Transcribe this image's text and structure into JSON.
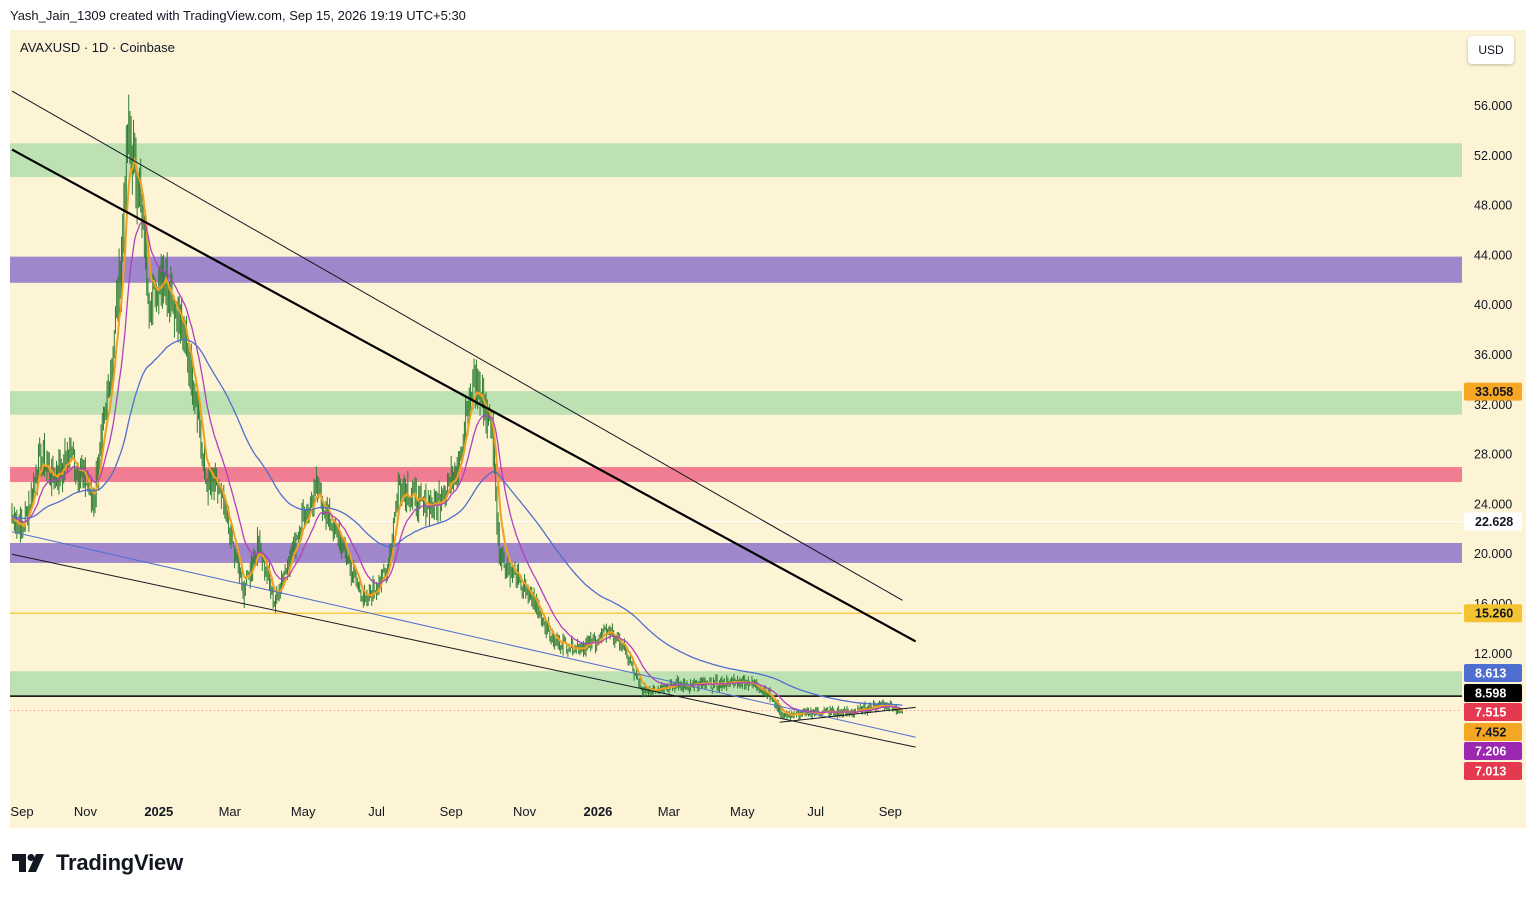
{
  "header": {
    "attribution": "Yash_Jain_1309 created with TradingView.com, Sep 15, 2026 19:19 UTC+5:30"
  },
  "chart": {
    "symbol_line": "AVAXUSD · 1D · Coinbase",
    "currency": "USD"
  },
  "footer": {
    "brand": "TradingView"
  },
  "colors": {
    "background": "#fdf3d5",
    "zone_green": "#b9dfb0",
    "zone_purple": "#9b80c9",
    "zone_pink": "#f0768f",
    "candle": "#2e7d32",
    "ema_fast": "#f0a020",
    "ema_mid": "#b040c0",
    "ema_slow": "#4f6fd0",
    "support_line": "#f4c430"
  },
  "chart_data": {
    "type": "candlestick",
    "symbol": "AVAXUSD",
    "interval": "1D",
    "exchange": "Coinbase",
    "x_axis": {
      "ticks": [
        {
          "label": "Sep",
          "date": "2024-09-01",
          "bold": false
        },
        {
          "label": "Nov",
          "date": "2024-11-01",
          "bold": false
        },
        {
          "label": "2025",
          "date": "2025-01-01",
          "bold": true
        },
        {
          "label": "Mar",
          "date": "2025-03-01",
          "bold": false
        },
        {
          "label": "May",
          "date": "2025-05-01",
          "bold": false
        },
        {
          "label": "Jul",
          "date": "2025-07-01",
          "bold": false
        },
        {
          "label": "Sep",
          "date": "2025-09-01",
          "bold": false
        },
        {
          "label": "Nov",
          "date": "2025-11-01",
          "bold": false
        },
        {
          "label": "2026",
          "date": "2026-01-01",
          "bold": true
        },
        {
          "label": "Mar",
          "date": "2026-03-01",
          "bold": false
        },
        {
          "label": "May",
          "date": "2026-05-01",
          "bold": false
        },
        {
          "label": "Jul",
          "date": "2026-07-01",
          "bold": false
        },
        {
          "label": "Sep",
          "date": "2026-09-01",
          "bold": false
        }
      ]
    },
    "y_axis": {
      "ticks": [
        {
          "label": "56.000",
          "value": 56
        },
        {
          "label": "52.000",
          "value": 52
        },
        {
          "label": "48.000",
          "value": 48
        },
        {
          "label": "44.000",
          "value": 44
        },
        {
          "label": "40.000",
          "value": 40
        },
        {
          "label": "36.000",
          "value": 36
        },
        {
          "label": "32.000",
          "value": 32
        },
        {
          "label": "28.000",
          "value": 28
        },
        {
          "label": "24.000",
          "value": 24
        },
        {
          "label": "20.000",
          "value": 20
        },
        {
          "label": "16.000",
          "value": 16
        },
        {
          "label": "12.000",
          "value": 12
        }
      ]
    },
    "price_labels": [
      {
        "label": "33.058",
        "value": 33.058,
        "bg": "#f5a623",
        "color": "#131722"
      },
      {
        "label": "22.628",
        "value": 22.628,
        "bg": "#ffffff",
        "color": "#131722"
      },
      {
        "label": "15.260",
        "value": 15.26,
        "bg": "#f4c430",
        "color": "#131722"
      },
      {
        "label": "8.613",
        "value": 8.613,
        "bg": "#4f6fd0",
        "color": "#ffffff"
      },
      {
        "label": "8.598",
        "value": 8.598,
        "bg": "#000000",
        "color": "#ffffff"
      },
      {
        "label": "7.515",
        "value": 7.515,
        "bg": "#e53950",
        "color": "#ffffff"
      },
      {
        "label": "7.452",
        "value": 7.452,
        "bg": "#f5a623",
        "color": "#131722"
      },
      {
        "label": "7.206",
        "value": 7.206,
        "bg": "#9c27b0",
        "color": "#ffffff"
      },
      {
        "label": "7.013",
        "value": 7.013,
        "bg": "#e53950",
        "color": "#ffffff"
      }
    ],
    "zones": [
      {
        "low": 50.3,
        "high": 53.0,
        "color": "#b9dfb0"
      },
      {
        "low": 41.8,
        "high": 43.9,
        "color": "#9b80c9"
      },
      {
        "low": 31.2,
        "high": 33.1,
        "color": "#b9dfb0"
      },
      {
        "low": 25.8,
        "high": 27.0,
        "color": "#f0768f"
      },
      {
        "low": 19.3,
        "high": 20.9,
        "color": "#9b80c9"
      },
      {
        "low": 8.6,
        "high": 10.6,
        "color": "#b9dfb0"
      }
    ],
    "horizontal_lines": [
      {
        "value": 15.26,
        "color": "#f4c430",
        "width": 1.2
      },
      {
        "value": 22.628,
        "color": "#ffffff",
        "width": 1.2
      },
      {
        "value": 8.598,
        "color": "#000000",
        "width": 1.5
      }
    ],
    "trendlines": [
      {
        "from": [
          "2024-09-01",
          57.2
        ],
        "to": [
          "2026-09-11",
          16.3
        ],
        "color": "#131722",
        "width": 1
      },
      {
        "from": [
          "2024-09-01",
          52.5
        ],
        "to": [
          "2026-09-22",
          13.0
        ],
        "color": "#000000",
        "width": 2.2
      },
      {
        "from": [
          "2024-09-01",
          20.0
        ],
        "to": [
          "2026-09-22",
          4.5
        ],
        "color": "#131722",
        "width": 1
      },
      {
        "from": [
          "2024-09-01",
          21.8
        ],
        "to": [
          "2026-09-22",
          5.3
        ],
        "color": "#4f6fd0",
        "width": 1
      },
      {
        "from": [
          "2026-06-01",
          6.5
        ],
        "to": [
          "2026-09-22",
          7.7
        ],
        "color": "#131722",
        "width": 1
      }
    ],
    "price_path": [
      {
        "date": "2024-09-01",
        "close": 23.0
      },
      {
        "date": "2024-09-10",
        "close": 22.0
      },
      {
        "date": "2024-09-25",
        "close": 28.0
      },
      {
        "date": "2024-10-05",
        "close": 26.0
      },
      {
        "date": "2024-10-20",
        "close": 28.0
      },
      {
        "date": "2024-11-01",
        "close": 26.0
      },
      {
        "date": "2024-11-07",
        "close": 24.0
      },
      {
        "date": "2024-11-20",
        "close": 33.0
      },
      {
        "date": "2024-12-01",
        "close": 44.0
      },
      {
        "date": "2024-12-06",
        "close": 54.0
      },
      {
        "date": "2024-12-15",
        "close": 50.0
      },
      {
        "date": "2024-12-25",
        "close": 40.0
      },
      {
        "date": "2025-01-05",
        "close": 43.0
      },
      {
        "date": "2025-01-18",
        "close": 39.0
      },
      {
        "date": "2025-02-01",
        "close": 33.0
      },
      {
        "date": "2025-02-08",
        "close": 26.0
      },
      {
        "date": "2025-02-20",
        "close": 25.0
      },
      {
        "date": "2025-03-05",
        "close": 20.0
      },
      {
        "date": "2025-03-12",
        "close": 17.0
      },
      {
        "date": "2025-03-25",
        "close": 21.0
      },
      {
        "date": "2025-04-07",
        "close": 16.0
      },
      {
        "date": "2025-04-20",
        "close": 20.0
      },
      {
        "date": "2025-05-01",
        "close": 23.0
      },
      {
        "date": "2025-05-12",
        "close": 25.0
      },
      {
        "date": "2025-06-01",
        "close": 21.0
      },
      {
        "date": "2025-06-22",
        "close": 16.0
      },
      {
        "date": "2025-07-10",
        "close": 19.0
      },
      {
        "date": "2025-07-20",
        "close": 26.0
      },
      {
        "date": "2025-08-05",
        "close": 24.0
      },
      {
        "date": "2025-08-20",
        "close": 24.0
      },
      {
        "date": "2025-09-05",
        "close": 27.0
      },
      {
        "date": "2025-09-20",
        "close": 34.0
      },
      {
        "date": "2025-10-05",
        "close": 30.0
      },
      {
        "date": "2025-10-11",
        "close": 20.0
      },
      {
        "date": "2025-10-25",
        "close": 18.0
      },
      {
        "date": "2025-11-10",
        "close": 16.0
      },
      {
        "date": "2025-11-25",
        "close": 13.0
      },
      {
        "date": "2025-12-15",
        "close": 12.5
      },
      {
        "date": "2025-12-31",
        "close": 13.0
      },
      {
        "date": "2026-01-10",
        "close": 14.0
      },
      {
        "date": "2026-01-25",
        "close": 12.0
      },
      {
        "date": "2026-02-06",
        "close": 9.0
      },
      {
        "date": "2026-03-01",
        "close": 9.5
      },
      {
        "date": "2026-04-01",
        "close": 9.5
      },
      {
        "date": "2026-05-05",
        "close": 9.8
      },
      {
        "date": "2026-05-20",
        "close": 9.0
      },
      {
        "date": "2026-06-05",
        "close": 7.0
      },
      {
        "date": "2026-07-01",
        "close": 7.3
      },
      {
        "date": "2026-08-01",
        "close": 7.3
      },
      {
        "date": "2026-08-25",
        "close": 8.0
      },
      {
        "date": "2026-09-11",
        "close": 7.45
      }
    ],
    "moving_averages": [
      {
        "name": "EMA fast",
        "color": "#f0a020",
        "period": 8,
        "last": 7.452
      },
      {
        "name": "EMA mid",
        "color": "#b040c0",
        "period": 24,
        "last": 7.206
      },
      {
        "name": "EMA slow",
        "color": "#4f6fd0",
        "period": 110,
        "last": 8.613
      }
    ]
  }
}
